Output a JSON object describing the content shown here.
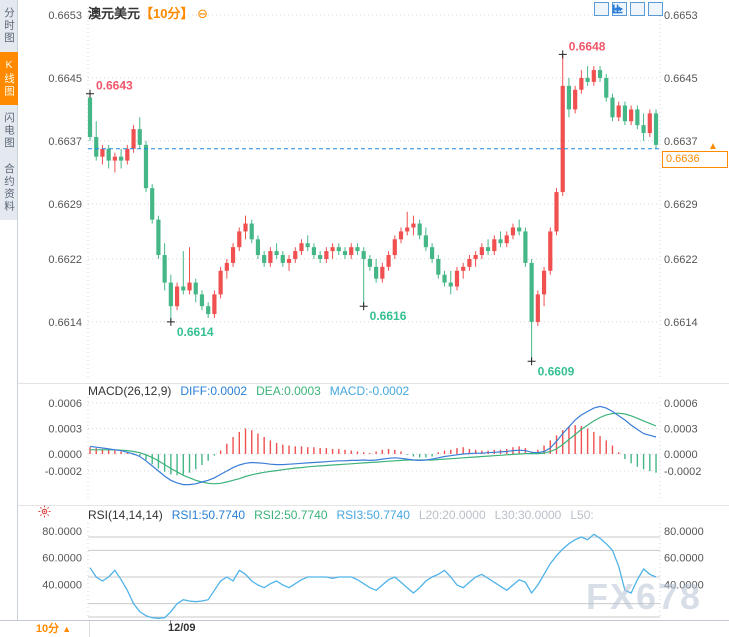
{
  "app": {
    "watermark": "FX678"
  },
  "sidebar": {
    "items": [
      {
        "label": "分时图",
        "active": false
      },
      {
        "label": "K线图",
        "active": true
      },
      {
        "label": "闪电图",
        "active": false
      },
      {
        "label": "合约资料",
        "active": false
      }
    ]
  },
  "header": {
    "symbol": "澳元美元",
    "timeframe_bracket": "【10分】",
    "collapse_icon": "⊖"
  },
  "toolbar": {
    "buttons": [
      {
        "name": "crosshair"
      },
      {
        "name": "y-axis-scale"
      },
      {
        "name": "x-axis-scale"
      },
      {
        "name": "pan-right"
      }
    ]
  },
  "price_marker": {
    "value": "0.6636",
    "arrow": "▲"
  },
  "bottom_bar": {
    "timeframe": "10分",
    "arrow": "▲",
    "date": "12/09"
  },
  "colors": {
    "up": "#f0504f",
    "down": "#45b787",
    "current_line": "#1e88e5",
    "accent_orange": "#ff8a00",
    "diff_line": "#3b7dd8",
    "dea_line": "#3cb37a",
    "rsi_line": "#4fb3e8",
    "anno_high": "#f0566a",
    "anno_low": "#35c093",
    "grid": "#d4d4d4",
    "axis_text": "#555",
    "ref_line": "#c9c9c9"
  },
  "chart_data": [
    {
      "type": "candlestick",
      "symbol": "澳元美元",
      "interval": "10分",
      "price_base": 0.66,
      "price_unit": 0.0001,
      "y_ticks": [
        {
          "label": "0.6653",
          "value": 0.6653
        },
        {
          "label": "0.6645",
          "value": 0.6645
        },
        {
          "label": "0.6637",
          "value": 0.6637
        },
        {
          "label": "0.6629",
          "value": 0.6629
        },
        {
          "label": "0.6622",
          "value": 0.6622
        },
        {
          "label": "0.6614",
          "value": 0.6614
        }
      ],
      "last_price": {
        "label": "0.6636",
        "value": 0.6636
      },
      "x_tick": {
        "label": "12/09",
        "index": 13
      },
      "annotations": [
        {
          "index": 0,
          "value": 0.6643,
          "label": "0.6643",
          "kind": "high"
        },
        {
          "index": 76,
          "value": 0.6648,
          "label": "0.6648",
          "kind": "high"
        },
        {
          "index": 13,
          "value": 0.6614,
          "label": "0.6614",
          "kind": "low"
        },
        {
          "index": 44,
          "value": 0.6616,
          "label": "0.6616",
          "kind": "low"
        },
        {
          "index": 71,
          "value": 0.6609,
          "label": "0.6609",
          "kind": "low"
        }
      ],
      "candles": [
        [
          42.5,
          43,
          37,
          37.5
        ],
        [
          37.5,
          39.5,
          34.5,
          35
        ],
        [
          35,
          36.5,
          34,
          36
        ],
        [
          36,
          36.5,
          33.5,
          34.5
        ],
        [
          34.5,
          35.5,
          33,
          35
        ],
        [
          35,
          36,
          33.5,
          34.5
        ],
        [
          34.5,
          36.5,
          34,
          36
        ],
        [
          36,
          39,
          35.5,
          38.5
        ],
        [
          38.5,
          40,
          36,
          36.5
        ],
        [
          36.5,
          37,
          30.5,
          31
        ],
        [
          31,
          31.5,
          26.5,
          27
        ],
        [
          27,
          27.5,
          22,
          22.5
        ],
        [
          22.5,
          24,
          18,
          19
        ],
        [
          19,
          20,
          14,
          16
        ],
        [
          16,
          19,
          15.5,
          18.5
        ],
        [
          18.5,
          23,
          17.5,
          18
        ],
        [
          18,
          23.5,
          17.5,
          19
        ],
        [
          19,
          19.5,
          16.5,
          17.5
        ],
        [
          17.5,
          18,
          15.5,
          16
        ],
        [
          16,
          16.5,
          14.5,
          15
        ],
        [
          15,
          18,
          14.5,
          17.5
        ],
        [
          17.5,
          21,
          17,
          20.5
        ],
        [
          20.5,
          22,
          19.5,
          21.5
        ],
        [
          21.5,
          24,
          21,
          23.5
        ],
        [
          23.5,
          26,
          23,
          25.5
        ],
        [
          25.5,
          27.5,
          24.5,
          26.5
        ],
        [
          26.5,
          27,
          24,
          24.5
        ],
        [
          24.5,
          25,
          22,
          22.5
        ],
        [
          22.5,
          23,
          21,
          21.5
        ],
        [
          21.5,
          23.5,
          21,
          23
        ],
        [
          23,
          24,
          22,
          22.5
        ],
        [
          22.5,
          23,
          21,
          21.5
        ],
        [
          21.5,
          22.5,
          20.5,
          22
        ],
        [
          22,
          23.5,
          21.5,
          23
        ],
        [
          23,
          24.5,
          22.5,
          24
        ],
        [
          24,
          25,
          23,
          23.5
        ],
        [
          23.5,
          24,
          22,
          22.5
        ],
        [
          22.5,
          23,
          21.5,
          22
        ],
        [
          22,
          23.5,
          21.5,
          23
        ],
        [
          23,
          24,
          22,
          23.5
        ],
        [
          23.5,
          24,
          22.5,
          23
        ],
        [
          23,
          23.5,
          22,
          22.5
        ],
        [
          22.5,
          24,
          22,
          23.5
        ],
        [
          23.5,
          24,
          22.5,
          23
        ],
        [
          23,
          23.5,
          16,
          22
        ],
        [
          22,
          22.5,
          20.5,
          21
        ],
        [
          21,
          22,
          19,
          19.5
        ],
        [
          19.5,
          21.5,
          19,
          21
        ],
        [
          21,
          23,
          20.5,
          22.5
        ],
        [
          22.5,
          25,
          22,
          24.5
        ],
        [
          24.5,
          26,
          24,
          25.5
        ],
        [
          25.5,
          28,
          25,
          26
        ],
        [
          26,
          27.5,
          25,
          26.5
        ],
        [
          26.5,
          27,
          24.5,
          25
        ],
        [
          25,
          26,
          23,
          23.5
        ],
        [
          23.5,
          24,
          21.5,
          22
        ],
        [
          22,
          22.5,
          19.5,
          20
        ],
        [
          20,
          20.5,
          18.5,
          19
        ],
        [
          19,
          20.5,
          17.5,
          18.5
        ],
        [
          18.5,
          21,
          18,
          20.5
        ],
        [
          20.5,
          21.5,
          19.5,
          21
        ],
        [
          21,
          22.5,
          20.5,
          22
        ],
        [
          22,
          23,
          21,
          22.5
        ],
        [
          22.5,
          24,
          22,
          23.5
        ],
        [
          23.5,
          24.5,
          22.5,
          23
        ],
        [
          23,
          25,
          22.5,
          24.5
        ],
        [
          24.5,
          25.5,
          23.5,
          24
        ],
        [
          24,
          25.5,
          23.5,
          25
        ],
        [
          25,
          26.5,
          24.5,
          26
        ],
        [
          26,
          27,
          25,
          25.5
        ],
        [
          25.5,
          26,
          21,
          21.5
        ],
        [
          21.5,
          22,
          9,
          14
        ],
        [
          14,
          18,
          13.5,
          17.5
        ],
        [
          17.5,
          21,
          16,
          20.5
        ],
        [
          20.5,
          26,
          20,
          25.5
        ],
        [
          25.5,
          31,
          25,
          30.5
        ],
        [
          30.5,
          48,
          30,
          44
        ],
        [
          44,
          45,
          40,
          41
        ],
        [
          41,
          44,
          40.5,
          43.5
        ],
        [
          43.5,
          46,
          43,
          45
        ],
        [
          45,
          46.5,
          44,
          44.5
        ],
        [
          44.5,
          46.5,
          44,
          46
        ],
        [
          46,
          46.5,
          44.5,
          45
        ],
        [
          45,
          45.5,
          42,
          42.5
        ],
        [
          42.5,
          43,
          39.5,
          40
        ],
        [
          40,
          42,
          39.5,
          41.5
        ],
        [
          41.5,
          42,
          39,
          39.5
        ],
        [
          39.5,
          41.5,
          39,
          41
        ],
        [
          41,
          41.5,
          38.5,
          39
        ],
        [
          39,
          40.5,
          37,
          38
        ],
        [
          38,
          41,
          37.5,
          40.5
        ],
        [
          40.5,
          41,
          36,
          36.5
        ]
      ]
    },
    {
      "type": "macd",
      "title": "MACD(26,12,9)",
      "legend": [
        {
          "text": "DIFF:0.0002",
          "color": "#2a7fd4"
        },
        {
          "text": "DEA:0.0003",
          "color": "#3cb37a"
        },
        {
          "text": "MACD:-0.0002",
          "color": "#45a7e0"
        }
      ],
      "value_unit": 0.0001,
      "y_ticks": [
        {
          "label": "0.0006",
          "v": 6
        },
        {
          "label": "0.0003",
          "v": 3
        },
        {
          "label": "0.0000",
          "v": 0
        },
        {
          "label": "-0.0002",
          "v": -2
        }
      ],
      "hist": [
        0.8,
        0.7,
        0.6,
        0.5,
        0.4,
        0.3,
        0.1,
        -0.1,
        -0.3,
        -0.7,
        -1.2,
        -1.7,
        -2.1,
        -2.4,
        -2.5,
        -2.4,
        -2.2,
        -1.8,
        -1.3,
        -0.8,
        -0.2,
        0.4,
        1.2,
        2.0,
        2.6,
        3.0,
        2.8,
        2.4,
        2.0,
        1.6,
        1.3,
        1.1,
        1.0,
        0.9,
        0.9,
        0.8,
        0.8,
        0.7,
        0.7,
        0.6,
        0.6,
        0.5,
        0.4,
        0.3,
        0.2,
        0.1,
        0.3,
        0.5,
        0.6,
        0.5,
        0.3,
        -0.1,
        -0.3,
        -0.4,
        -0.4,
        -0.3,
        0.2,
        0.4,
        0.5,
        0.7,
        0.8,
        0.6,
        0.5,
        0.4,
        0.4,
        0.5,
        0.5,
        0.6,
        0.8,
        0.9,
        0.7,
        0.3,
        0.5,
        1.0,
        1.6,
        2.2,
        2.8,
        3.2,
        3.4,
        3.3,
        3.0,
        2.6,
        2.1,
        1.6,
        1.0,
        0.2,
        -0.6,
        -1.1,
        -1.5,
        -1.8,
        -2.0,
        -2.2
      ],
      "diff": [
        0.9,
        0.8,
        0.7,
        0.6,
        0.5,
        0.4,
        0.2,
        0.0,
        -0.3,
        -0.8,
        -1.4,
        -2.0,
        -2.6,
        -3.1,
        -3.4,
        -3.6,
        -3.6,
        -3.5,
        -3.3,
        -3.1,
        -2.8,
        -2.4,
        -2.0,
        -1.6,
        -1.3,
        -1.1,
        -1.0,
        -1.05,
        -1.1,
        -1.2,
        -1.25,
        -1.25,
        -1.2,
        -1.15,
        -1.1,
        -1.05,
        -1.0,
        -0.95,
        -0.9,
        -0.85,
        -0.8,
        -0.8,
        -0.75,
        -0.75,
        -0.7,
        -0.75,
        -0.7,
        -0.6,
        -0.5,
        -0.45,
        -0.5,
        -0.6,
        -0.7,
        -0.75,
        -0.7,
        -0.6,
        -0.45,
        -0.3,
        -0.2,
        -0.1,
        0.0,
        0.05,
        0.1,
        0.1,
        0.15,
        0.2,
        0.25,
        0.3,
        0.4,
        0.45,
        0.4,
        0.2,
        0.15,
        0.3,
        0.7,
        1.5,
        2.4,
        3.2,
        4.0,
        4.6,
        5.0,
        5.4,
        5.6,
        5.4,
        5.0,
        4.5,
        4.0,
        3.4,
        2.9,
        2.4,
        2.2,
        2.0
      ],
      "dea": [
        0.5,
        0.5,
        0.5,
        0.5,
        0.48,
        0.45,
        0.4,
        0.3,
        0.15,
        -0.1,
        -0.4,
        -0.8,
        -1.25,
        -1.7,
        -2.1,
        -2.5,
        -2.8,
        -3.1,
        -3.3,
        -3.45,
        -3.5,
        -3.45,
        -3.3,
        -3.1,
        -2.9,
        -2.65,
        -2.45,
        -2.3,
        -2.15,
        -2.05,
        -1.95,
        -1.85,
        -1.75,
        -1.65,
        -1.6,
        -1.5,
        -1.45,
        -1.4,
        -1.35,
        -1.3,
        -1.25,
        -1.2,
        -1.15,
        -1.1,
        -1.05,
        -1.0,
        -0.95,
        -0.9,
        -0.85,
        -0.8,
        -0.75,
        -0.7,
        -0.7,
        -0.7,
        -0.7,
        -0.7,
        -0.65,
        -0.6,
        -0.55,
        -0.5,
        -0.45,
        -0.4,
        -0.35,
        -0.3,
        -0.25,
        -0.2,
        -0.15,
        -0.1,
        -0.05,
        0.0,
        0.05,
        0.05,
        0.05,
        0.1,
        0.3,
        0.6,
        1.1,
        1.7,
        2.3,
        2.9,
        3.4,
        3.9,
        4.3,
        4.6,
        4.75,
        4.8,
        4.7,
        4.5,
        4.2,
        3.9,
        3.6,
        3.3
      ]
    },
    {
      "type": "rsi",
      "title": "RSI(14,14,14)",
      "legend": [
        {
          "text": "RSI1:50.7740",
          "color": "#2a7fd4"
        },
        {
          "text": "RSI2:50.7740",
          "color": "#3cb37a"
        },
        {
          "text": "RSI3:50.7740",
          "color": "#45a7e0"
        },
        {
          "text": "L20:20.0000",
          "color": "#b9bfc9"
        },
        {
          "text": "L30:30.0000",
          "color": "#b9bfc9"
        },
        {
          "text": "L50:",
          "color": "#b9bfc9"
        }
      ],
      "y_ticks": [
        {
          "label": "80.0000",
          "v": 80
        },
        {
          "label": "60.0000",
          "v": 60
        },
        {
          "label": "40.0000",
          "v": 40
        }
      ],
      "ref_lines": [
        80,
        70,
        50,
        30,
        20
      ],
      "values": [
        57,
        50,
        47,
        50,
        55,
        48,
        40,
        30,
        24,
        21,
        19.5,
        19,
        19.5,
        24,
        30,
        33,
        32,
        31.5,
        32,
        33,
        40,
        47,
        50,
        47,
        55,
        52,
        47,
        44,
        42,
        45,
        47,
        44,
        42,
        45,
        48,
        50,
        50,
        50,
        50,
        49,
        50,
        50,
        50,
        48,
        45,
        42,
        40,
        44,
        48,
        50,
        46,
        42,
        38,
        42,
        47,
        50,
        52,
        55,
        50,
        44,
        42,
        46,
        50,
        52,
        49,
        46,
        43,
        40,
        44,
        48,
        46,
        38,
        44,
        52,
        60,
        66,
        71,
        75,
        78,
        80,
        78,
        82,
        79,
        75,
        70,
        58,
        40,
        38,
        48,
        56,
        52,
        50
      ]
    }
  ]
}
